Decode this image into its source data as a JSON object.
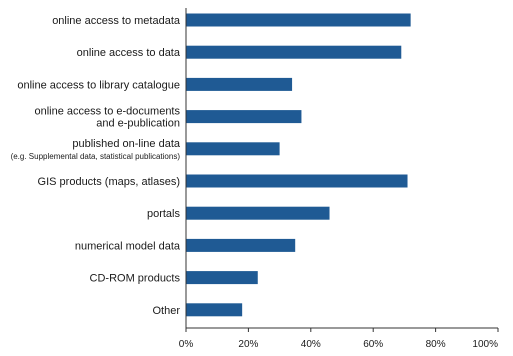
{
  "chart_data": {
    "type": "bar",
    "orientation": "horizontal",
    "categories": [
      [
        "online access to metadata"
      ],
      [
        "online access to data"
      ],
      [
        "online access to library catalogue"
      ],
      [
        "online access to e-documents",
        "and e-publication"
      ],
      [
        "published on-line data",
        "(e.g. Supplemental data, statistical publications)"
      ],
      [
        "GIS products (maps, atlases)"
      ],
      [
        "portals"
      ],
      [
        "numerical model data"
      ],
      [
        "CD-ROM products"
      ],
      [
        "Other"
      ]
    ],
    "values": [
      72,
      69,
      34,
      37,
      30,
      71,
      46,
      35,
      23,
      18
    ],
    "xlim": [
      0,
      100
    ],
    "xticks": [
      0,
      20,
      40,
      60,
      80,
      100
    ],
    "xtick_labels": [
      "0%",
      "20%",
      "40%",
      "60%",
      "80%",
      "100%"
    ],
    "title": "",
    "xlabel": "",
    "ylabel": "",
    "grid": false,
    "legend": "none",
    "bar_color": "#1f5a94"
  }
}
